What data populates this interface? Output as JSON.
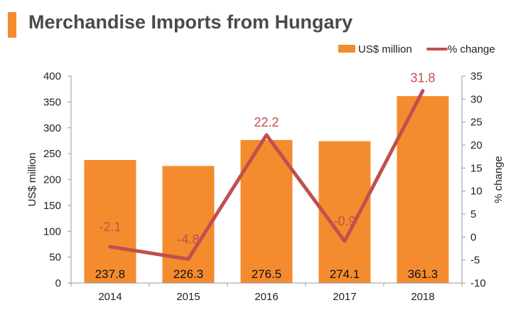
{
  "header": {
    "title": "Merchandise Imports from Hungary"
  },
  "colors": {
    "bar": "#f58b2f",
    "line": "#c0504d",
    "accent": "#f58b2f",
    "axis": "#999999"
  },
  "chart_data": {
    "type": "bar+line",
    "title": "Merchandise Imports from Hungary",
    "categories": [
      "2014",
      "2015",
      "2016",
      "2017",
      "2018"
    ],
    "series": [
      {
        "name": "US$ million",
        "type": "bar",
        "axis": "left",
        "values": [
          237.8,
          226.3,
          276.5,
          274.1,
          361.3
        ]
      },
      {
        "name": "% change",
        "type": "line",
        "axis": "right",
        "values": [
          -2.1,
          -4.8,
          22.2,
          -0.9,
          31.8
        ]
      }
    ],
    "ylabel": "US$ million",
    "y2label": "% change",
    "ylim": [
      0,
      400
    ],
    "y2lim": [
      -10,
      35
    ],
    "yticks": [
      0,
      50,
      100,
      150,
      200,
      250,
      300,
      350,
      400
    ],
    "y2ticks": [
      -10,
      -5,
      0,
      5,
      10,
      15,
      20,
      25,
      30,
      35
    ],
    "legend": "top-right",
    "grid": false
  }
}
